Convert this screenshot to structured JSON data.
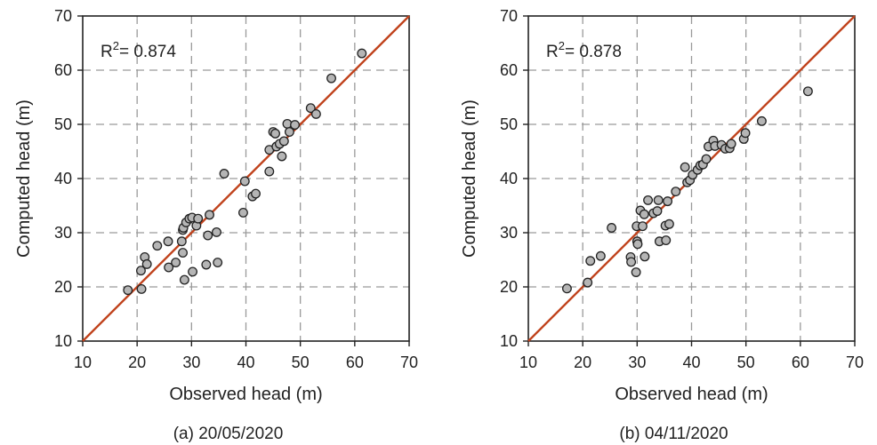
{
  "chart_data": [
    {
      "type": "scatter",
      "caption": "(a) 20/05/2020",
      "xlabel": "Observed head (m)",
      "ylabel": "Computed head (m)",
      "xlim": [
        10,
        70
      ],
      "ylim": [
        10,
        70
      ],
      "xticks": [
        "10",
        "20",
        "30",
        "40",
        "50",
        "60",
        "70"
      ],
      "yticks": [
        "10",
        "20",
        "30",
        "40",
        "50",
        "60",
        "70"
      ],
      "grid": true,
      "r2_prefix": "R",
      "r2_sup": "2",
      "r2_value": "= 0.874",
      "reference_line": "1:1",
      "points": [
        [
          18.3,
          19.4
        ],
        [
          20.8,
          19.6
        ],
        [
          20.7,
          23.0
        ],
        [
          21.4,
          25.5
        ],
        [
          21.8,
          24.2
        ],
        [
          23.7,
          27.6
        ],
        [
          25.7,
          28.4
        ],
        [
          25.8,
          23.6
        ],
        [
          27.1,
          24.5
        ],
        [
          28.2,
          28.4
        ],
        [
          28.4,
          30.5
        ],
        [
          28.5,
          30.9
        ],
        [
          28.4,
          26.3
        ],
        [
          28.7,
          21.3
        ],
        [
          29.0,
          31.9
        ],
        [
          29.6,
          32.6
        ],
        [
          30.1,
          32.8
        ],
        [
          30.2,
          22.8
        ],
        [
          30.9,
          31.3
        ],
        [
          31.2,
          32.6
        ],
        [
          32.7,
          24.1
        ],
        [
          33.0,
          29.5
        ],
        [
          33.3,
          33.3
        ],
        [
          34.6,
          30.1
        ],
        [
          34.8,
          24.5
        ],
        [
          36.0,
          40.9
        ],
        [
          39.5,
          33.7
        ],
        [
          39.8,
          39.5
        ],
        [
          41.2,
          36.7
        ],
        [
          41.8,
          37.2
        ],
        [
          44.3,
          41.3
        ],
        [
          44.3,
          45.3
        ],
        [
          45.0,
          48.6
        ],
        [
          45.4,
          48.3
        ],
        [
          45.6,
          45.9
        ],
        [
          46.2,
          46.4
        ],
        [
          46.6,
          44.1
        ],
        [
          47.0,
          46.9
        ],
        [
          47.6,
          50.1
        ],
        [
          48.0,
          48.6
        ],
        [
          49.0,
          49.9
        ],
        [
          51.9,
          53.0
        ],
        [
          52.9,
          51.9
        ],
        [
          55.7,
          58.5
        ],
        [
          61.3,
          63.1
        ]
      ]
    },
    {
      "type": "scatter",
      "caption": "(b) 04/11/2020",
      "xlabel": "Observed head (m)",
      "ylabel": "Computed head (m)",
      "xlim": [
        10,
        70
      ],
      "ylim": [
        10,
        70
      ],
      "xticks": [
        "10",
        "20",
        "30",
        "40",
        "50",
        "60",
        "70"
      ],
      "yticks": [
        "10",
        "20",
        "30",
        "40",
        "50",
        "60",
        "70"
      ],
      "grid": true,
      "r2_prefix": "R",
      "r2_sup": "2",
      "r2_value": "= 0.878",
      "reference_line": "1:1",
      "points": [
        [
          17.1,
          19.7
        ],
        [
          20.9,
          20.8
        ],
        [
          21.4,
          24.8
        ],
        [
          23.3,
          25.7
        ],
        [
          25.3,
          30.9
        ],
        [
          28.8,
          25.5
        ],
        [
          28.9,
          24.6
        ],
        [
          29.8,
          22.7
        ],
        [
          30.0,
          28.4
        ],
        [
          30.1,
          27.9
        ],
        [
          29.9,
          31.2
        ],
        [
          30.6,
          34.1
        ],
        [
          31.0,
          31.2
        ],
        [
          31.3,
          33.4
        ],
        [
          31.4,
          25.6
        ],
        [
          32.0,
          36.0
        ],
        [
          33.0,
          33.6
        ],
        [
          33.7,
          34.0
        ],
        [
          33.9,
          36.0
        ],
        [
          34.1,
          28.4
        ],
        [
          35.2,
          31.3
        ],
        [
          35.3,
          28.6
        ],
        [
          35.6,
          35.8
        ],
        [
          35.9,
          31.6
        ],
        [
          37.1,
          37.6
        ],
        [
          38.8,
          42.1
        ],
        [
          39.2,
          39.3
        ],
        [
          39.7,
          39.7
        ],
        [
          40.2,
          40.7
        ],
        [
          41.1,
          41.6
        ],
        [
          41.6,
          42.4
        ],
        [
          42.1,
          42.6
        ],
        [
          42.7,
          43.6
        ],
        [
          43.1,
          45.9
        ],
        [
          44.0,
          47.0
        ],
        [
          44.3,
          46.0
        ],
        [
          45.5,
          46.2
        ],
        [
          46.2,
          45.5
        ],
        [
          47.0,
          45.6
        ],
        [
          47.3,
          46.4
        ],
        [
          49.6,
          47.3
        ],
        [
          49.9,
          48.4
        ],
        [
          52.9,
          50.6
        ],
        [
          61.4,
          56.1
        ]
      ]
    }
  ],
  "colors": {
    "reference_line": "#c0421c",
    "marker_fill": "#b5b5b5",
    "marker_stroke": "#222222",
    "grid": "#9a9a9a",
    "frame": "#222222"
  }
}
